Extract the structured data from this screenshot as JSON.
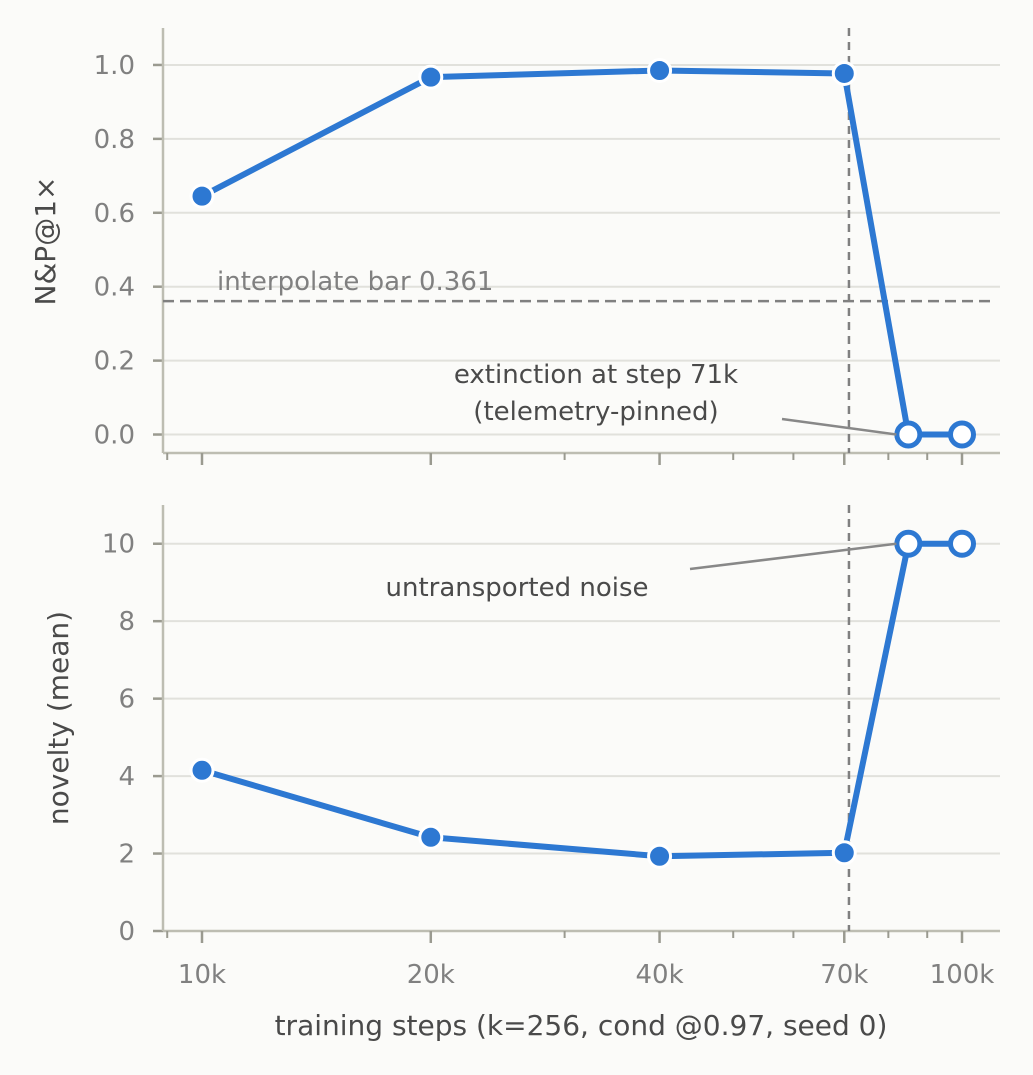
{
  "chart_data": [
    {
      "type": "line",
      "ylabel": "N&P@1×",
      "ylim": [
        -0.05,
        1.1
      ],
      "yticks": [
        "0.0",
        "0.2",
        "0.4",
        "0.6",
        "0.8",
        "1.0"
      ],
      "grid": "horizontal",
      "x": [
        10000,
        20000,
        40000,
        70000,
        85000,
        100000
      ],
      "series": [
        {
          "values": [
            0.645,
            0.967,
            0.985,
            0.977,
            0.0,
            0.0
          ],
          "marker_style": [
            "filled",
            "filled",
            "filled",
            "filled",
            "hollow",
            "hollow"
          ],
          "color": "#2d78d2"
        }
      ],
      "reference_line": {
        "y": 0.361,
        "label": "interpolate bar 0.361"
      },
      "vertical_line": {
        "x": 71000
      },
      "annotation": {
        "lines": [
          "extinction at step 71k",
          "(telemetry-pinned)"
        ],
        "points_to": {
          "x": 85000,
          "y": 0.0
        }
      }
    },
    {
      "type": "line",
      "ylabel": "novelty (mean)",
      "xlabel": "training steps (k=256, cond @0.97, seed 0)",
      "ylim": [
        0,
        11
      ],
      "yticks": [
        "0",
        "2",
        "4",
        "6",
        "8",
        "10"
      ],
      "xscale": "log",
      "xticks": [
        "10k",
        "20k",
        "40k",
        "70k",
        "100k"
      ],
      "grid": "horizontal",
      "x": [
        10000,
        20000,
        40000,
        70000,
        85000,
        100000
      ],
      "series": [
        {
          "values": [
            4.15,
            2.42,
            1.93,
            2.02,
            10.0,
            10.0
          ],
          "marker_style": [
            "filled",
            "filled",
            "filled",
            "filled",
            "hollow",
            "hollow"
          ],
          "color": "#2d78d2"
        }
      ],
      "vertical_line": {
        "x": 71000
      },
      "annotation": {
        "lines": [
          "untransported noise"
        ],
        "points_to": {
          "x": 85000,
          "y": 10.0
        }
      }
    }
  ]
}
